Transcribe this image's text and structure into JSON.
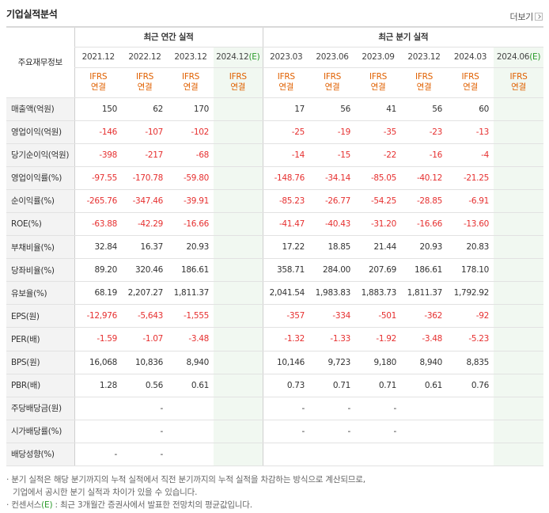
{
  "header": {
    "title": "기업실적분석",
    "more_label": "더보기"
  },
  "table": {
    "row_header_label": "주요재무정보",
    "group_annual": "최근 연간 실적",
    "group_quarterly": "최근 분기 실적",
    "annual_periods": [
      "2021.12",
      "2022.12",
      "2023.12",
      "2024.12"
    ],
    "quarterly_periods": [
      "2023.03",
      "2023.06",
      "2023.09",
      "2023.12",
      "2024.03",
      "2024.06"
    ],
    "estimate_mark": "(E)",
    "ifrs_top": "IFRS",
    "ifrs_bottom": "연결",
    "rows": [
      {
        "label": "매출액(억원)",
        "values": [
          "150",
          "62",
          "170",
          "",
          "17",
          "56",
          "41",
          "56",
          "60",
          ""
        ],
        "neg": false
      },
      {
        "label": "영업이익(억원)",
        "values": [
          "-146",
          "-107",
          "-102",
          "",
          "-25",
          "-19",
          "-35",
          "-23",
          "-13",
          ""
        ],
        "neg": true
      },
      {
        "label": "당기순이익(억원)",
        "values": [
          "-398",
          "-217",
          "-68",
          "",
          "-14",
          "-15",
          "-22",
          "-16",
          "-4",
          ""
        ],
        "neg": true
      },
      {
        "label": "영업이익률(%)",
        "values": [
          "-97.55",
          "-170.78",
          "-59.80",
          "",
          "-148.76",
          "-34.14",
          "-85.05",
          "-40.12",
          "-21.25",
          ""
        ],
        "neg": true
      },
      {
        "label": "순이익률(%)",
        "values": [
          "-265.76",
          "-347.46",
          "-39.91",
          "",
          "-85.23",
          "-26.77",
          "-54.25",
          "-28.85",
          "-6.91",
          ""
        ],
        "neg": true
      },
      {
        "label": "ROE(%)",
        "values": [
          "-63.88",
          "-42.29",
          "-16.66",
          "",
          "-41.47",
          "-40.43",
          "-31.20",
          "-16.66",
          "-13.60",
          ""
        ],
        "neg": true
      },
      {
        "label": "부채비율(%)",
        "values": [
          "32.84",
          "16.37",
          "20.93",
          "",
          "17.22",
          "18.85",
          "21.44",
          "20.93",
          "20.83",
          ""
        ],
        "neg": false
      },
      {
        "label": "당좌비율(%)",
        "values": [
          "89.20",
          "320.46",
          "186.61",
          "",
          "358.71",
          "284.00",
          "207.69",
          "186.61",
          "178.10",
          ""
        ],
        "neg": false
      },
      {
        "label": "유보율(%)",
        "values": [
          "68.19",
          "2,207.27",
          "1,811.37",
          "",
          "2,041.54",
          "1,983.83",
          "1,883.73",
          "1,811.37",
          "1,792.92",
          ""
        ],
        "neg": false
      },
      {
        "label": "EPS(원)",
        "values": [
          "-12,976",
          "-5,643",
          "-1,555",
          "",
          "-357",
          "-334",
          "-501",
          "-362",
          "-92",
          ""
        ],
        "neg": true
      },
      {
        "label": "PER(배)",
        "values": [
          "-1.59",
          "-1.07",
          "-3.48",
          "",
          "-1.32",
          "-1.33",
          "-1.92",
          "-3.48",
          "-5.23",
          ""
        ],
        "neg": true
      },
      {
        "label": "BPS(원)",
        "values": [
          "16,068",
          "10,836",
          "8,940",
          "",
          "10,146",
          "9,723",
          "9,180",
          "8,940",
          "8,835",
          ""
        ],
        "neg": false
      },
      {
        "label": "PBR(배)",
        "values": [
          "1.28",
          "0.56",
          "0.61",
          "",
          "0.73",
          "0.71",
          "0.71",
          "0.61",
          "0.76",
          ""
        ],
        "neg": false
      },
      {
        "label": "주당배당금(원)",
        "values": [
          "",
          "-",
          "",
          "",
          "-",
          "-",
          "-",
          "",
          "",
          ""
        ],
        "neg": false
      },
      {
        "label": "시가배당률(%)",
        "values": [
          "",
          "-",
          "",
          "",
          "-",
          "-",
          "-",
          "",
          "",
          ""
        ],
        "neg": false
      },
      {
        "label": "배당성향(%)",
        "values": [
          "-",
          "-",
          "",
          "",
          "",
          "",
          "",
          "",
          "",
          ""
        ],
        "neg": false
      }
    ]
  },
  "notes": {
    "line1": "· 분기 실적은 해당 분기까지의 누적 실적에서 직전 분기까지의 누적 실적을 차감하는 방식으로 계산되므로,",
    "line2": "기업에서 공시한 분기 실적과 차이가 있을 수 있습니다.",
    "line3_pre": "· 컨센서스",
    "line3_mark": "(E)",
    "line3_post": " : 최근 3개월간 증권사에서 발표한 전망치의 평균값입니다."
  }
}
